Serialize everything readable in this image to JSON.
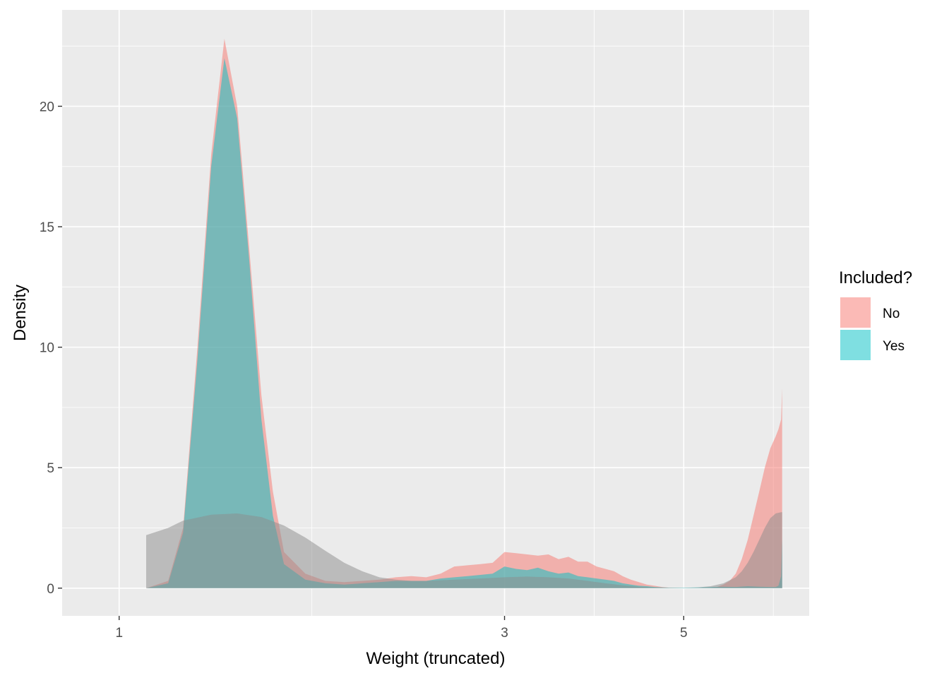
{
  "chart_data": {
    "type": "area",
    "subtype": "density",
    "xlabel": "Weight (truncated)",
    "ylabel": "Density",
    "x_ticks": [
      1,
      3,
      5
    ],
    "y_ticks": [
      0,
      5,
      10,
      15,
      20
    ],
    "xlim": [
      0.85,
      7.15
    ],
    "ylim": [
      -1.15,
      24.0
    ],
    "grid": true,
    "legend": {
      "title": "Included?",
      "position": "right",
      "entries": [
        {
          "label": "No",
          "color": "#F8766D"
        },
        {
          "label": "Yes",
          "color": "#00BFC4"
        }
      ]
    },
    "series": [
      {
        "name": "No",
        "color": "#F8766D",
        "opacity": 0.5,
        "points": [
          [
            1.08,
            0.0
          ],
          [
            1.15,
            0.3
          ],
          [
            1.2,
            2.5
          ],
          [
            1.25,
            10.0
          ],
          [
            1.3,
            18.0
          ],
          [
            1.35,
            22.8
          ],
          [
            1.4,
            20.0
          ],
          [
            1.45,
            14.0
          ],
          [
            1.5,
            8.0
          ],
          [
            1.55,
            4.0
          ],
          [
            1.6,
            1.5
          ],
          [
            1.7,
            0.6
          ],
          [
            1.8,
            0.3
          ],
          [
            1.9,
            0.25
          ],
          [
            2.0,
            0.3
          ],
          [
            2.1,
            0.35
          ],
          [
            2.2,
            0.45
          ],
          [
            2.3,
            0.5
          ],
          [
            2.4,
            0.45
          ],
          [
            2.5,
            0.6
          ],
          [
            2.6,
            0.9
          ],
          [
            2.7,
            0.95
          ],
          [
            2.8,
            1.0
          ],
          [
            2.9,
            1.05
          ],
          [
            3.0,
            1.5
          ],
          [
            3.1,
            1.45
          ],
          [
            3.2,
            1.4
          ],
          [
            3.3,
            1.35
          ],
          [
            3.4,
            1.4
          ],
          [
            3.5,
            1.2
          ],
          [
            3.6,
            1.3
          ],
          [
            3.7,
            1.1
          ],
          [
            3.8,
            1.1
          ],
          [
            3.9,
            0.9
          ],
          [
            4.0,
            0.8
          ],
          [
            4.1,
            0.7
          ],
          [
            4.2,
            0.5
          ],
          [
            4.3,
            0.35
          ],
          [
            4.4,
            0.25
          ],
          [
            4.5,
            0.15
          ],
          [
            4.6,
            0.1
          ],
          [
            4.7,
            0.05
          ],
          [
            4.8,
            0.02
          ],
          [
            5.0,
            0.0
          ],
          [
            5.2,
            0.0
          ],
          [
            5.4,
            0.02
          ],
          [
            5.5,
            0.05
          ],
          [
            5.6,
            0.15
          ],
          [
            5.7,
            0.3
          ],
          [
            5.8,
            0.6
          ],
          [
            5.9,
            1.2
          ],
          [
            6.0,
            2.0
          ],
          [
            6.1,
            3.0
          ],
          [
            6.2,
            4.0
          ],
          [
            6.3,
            5.0
          ],
          [
            6.4,
            5.8
          ],
          [
            6.5,
            6.3
          ],
          [
            6.55,
            6.6
          ],
          [
            6.6,
            7.0
          ],
          [
            6.62,
            8.3
          ],
          [
            6.62,
            0.0
          ]
        ]
      },
      {
        "name": "Yes",
        "color": "#00BFC4",
        "opacity": 0.5,
        "points": [
          [
            1.08,
            0.0
          ],
          [
            1.15,
            0.2
          ],
          [
            1.2,
            2.3
          ],
          [
            1.25,
            9.5
          ],
          [
            1.3,
            17.5
          ],
          [
            1.35,
            22.0
          ],
          [
            1.4,
            19.5
          ],
          [
            1.45,
            13.5
          ],
          [
            1.5,
            7.0
          ],
          [
            1.55,
            3.0
          ],
          [
            1.6,
            1.0
          ],
          [
            1.7,
            0.35
          ],
          [
            1.8,
            0.2
          ],
          [
            1.9,
            0.15
          ],
          [
            2.0,
            0.2
          ],
          [
            2.1,
            0.25
          ],
          [
            2.2,
            0.3
          ],
          [
            2.3,
            0.3
          ],
          [
            2.4,
            0.3
          ],
          [
            2.5,
            0.4
          ],
          [
            2.6,
            0.45
          ],
          [
            2.7,
            0.5
          ],
          [
            2.8,
            0.55
          ],
          [
            2.9,
            0.6
          ],
          [
            3.0,
            0.9
          ],
          [
            3.1,
            0.8
          ],
          [
            3.2,
            0.75
          ],
          [
            3.3,
            0.85
          ],
          [
            3.4,
            0.7
          ],
          [
            3.5,
            0.6
          ],
          [
            3.6,
            0.65
          ],
          [
            3.7,
            0.5
          ],
          [
            3.8,
            0.45
          ],
          [
            3.9,
            0.4
          ],
          [
            4.0,
            0.35
          ],
          [
            4.1,
            0.3
          ],
          [
            4.2,
            0.2
          ],
          [
            4.3,
            0.15
          ],
          [
            4.4,
            0.1
          ],
          [
            4.5,
            0.08
          ],
          [
            4.6,
            0.05
          ],
          [
            4.7,
            0.03
          ],
          [
            4.8,
            0.02
          ],
          [
            5.0,
            0.02
          ],
          [
            5.2,
            0.03
          ],
          [
            5.4,
            0.05
          ],
          [
            5.6,
            0.06
          ],
          [
            5.8,
            0.05
          ],
          [
            6.0,
            0.08
          ],
          [
            6.2,
            0.06
          ],
          [
            6.4,
            0.05
          ],
          [
            6.5,
            0.05
          ],
          [
            6.55,
            0.1
          ],
          [
            6.6,
            0.5
          ],
          [
            6.62,
            2.0
          ],
          [
            6.62,
            0.0
          ]
        ]
      },
      {
        "name": "",
        "color": "#8C8C8C",
        "opacity": 0.5,
        "points": [
          [
            1.08,
            0.0
          ],
          [
            1.08,
            2.2
          ],
          [
            1.15,
            2.5
          ],
          [
            1.2,
            2.8
          ],
          [
            1.3,
            3.05
          ],
          [
            1.4,
            3.1
          ],
          [
            1.5,
            2.95
          ],
          [
            1.6,
            2.6
          ],
          [
            1.7,
            2.1
          ],
          [
            1.8,
            1.55
          ],
          [
            1.9,
            1.05
          ],
          [
            2.0,
            0.7
          ],
          [
            2.1,
            0.45
          ],
          [
            2.2,
            0.35
          ],
          [
            2.3,
            0.3
          ],
          [
            2.4,
            0.3
          ],
          [
            2.6,
            0.35
          ],
          [
            2.8,
            0.4
          ],
          [
            3.0,
            0.45
          ],
          [
            3.2,
            0.48
          ],
          [
            3.4,
            0.45
          ],
          [
            3.6,
            0.4
          ],
          [
            3.8,
            0.3
          ],
          [
            4.0,
            0.2
          ],
          [
            4.2,
            0.12
          ],
          [
            4.4,
            0.06
          ],
          [
            4.6,
            0.03
          ],
          [
            4.8,
            0.01
          ],
          [
            5.0,
            0.01
          ],
          [
            5.2,
            0.03
          ],
          [
            5.4,
            0.08
          ],
          [
            5.6,
            0.2
          ],
          [
            5.8,
            0.45
          ],
          [
            5.9,
            0.7
          ],
          [
            6.0,
            1.05
          ],
          [
            6.1,
            1.5
          ],
          [
            6.2,
            2.0
          ],
          [
            6.3,
            2.5
          ],
          [
            6.4,
            2.9
          ],
          [
            6.5,
            3.1
          ],
          [
            6.6,
            3.15
          ],
          [
            6.62,
            3.15
          ],
          [
            6.62,
            0.0
          ]
        ]
      }
    ]
  }
}
